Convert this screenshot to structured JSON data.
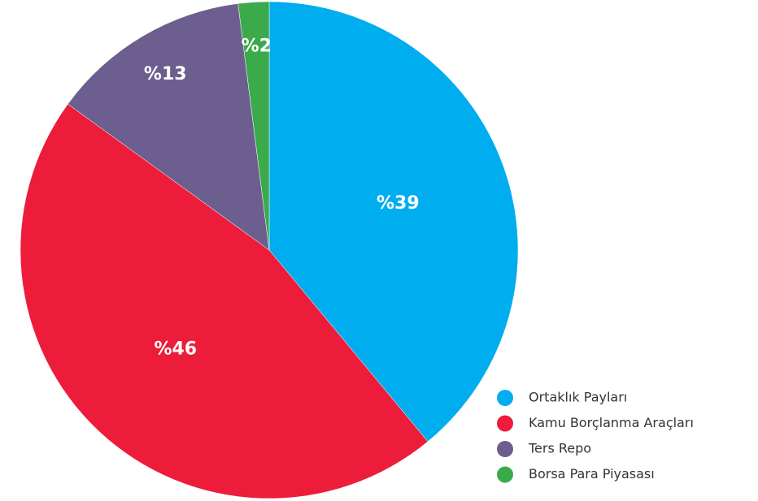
{
  "chart_data": {
    "type": "pie",
    "categories": [
      "Ortaklık Payları",
      "Kamu Borçlanma Araçları",
      "Ters Repo",
      "Borsa Para Piyasası"
    ],
    "values": [
      39,
      46,
      13,
      2
    ],
    "value_labels": [
      "%39",
      "%46",
      "%13",
      "%2"
    ],
    "colors": [
      "#00aeef",
      "#ed1c3a",
      "#6c5f8f",
      "#3aaa4a"
    ],
    "legend": "bottom-right"
  }
}
